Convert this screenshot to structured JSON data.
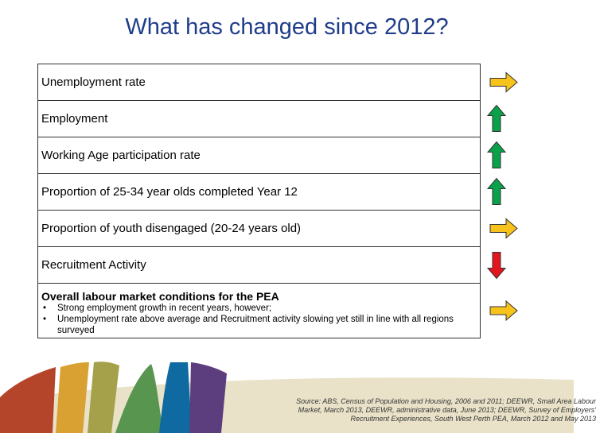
{
  "title": "What has changed since 2012?",
  "rows": [
    {
      "label": "Unemployment rate",
      "trend": "right"
    },
    {
      "label": "Employment",
      "trend": "up"
    },
    {
      "label": "Working Age participation rate",
      "trend": "up"
    },
    {
      "label": "Proportion of 25-34 year olds completed Year 12",
      "trend": "up"
    },
    {
      "label": "Proportion of youth disengaged (20-24 years old)",
      "trend": "right"
    },
    {
      "label": "Recruitment Activity",
      "trend": "down"
    }
  ],
  "summary": {
    "heading": "Overall labour market conditions for the PEA",
    "bullets": [
      "Strong employment growth in recent years, however;",
      "Unemployment rate above average and Recruitment activity slowing yet still in line with all regions surveyed"
    ],
    "trend": "right"
  },
  "source": [
    "Source: ABS, Census of Population and Housing, 2006 and 2011; DEEWR, Small Area Labour",
    "Market, March 2013, DEEWR, administrative data, June 2013; DEEWR, Survey of Employers'",
    "Recruitment Experiences, South West Perth PEA,  March 2012 and May 2013"
  ]
}
